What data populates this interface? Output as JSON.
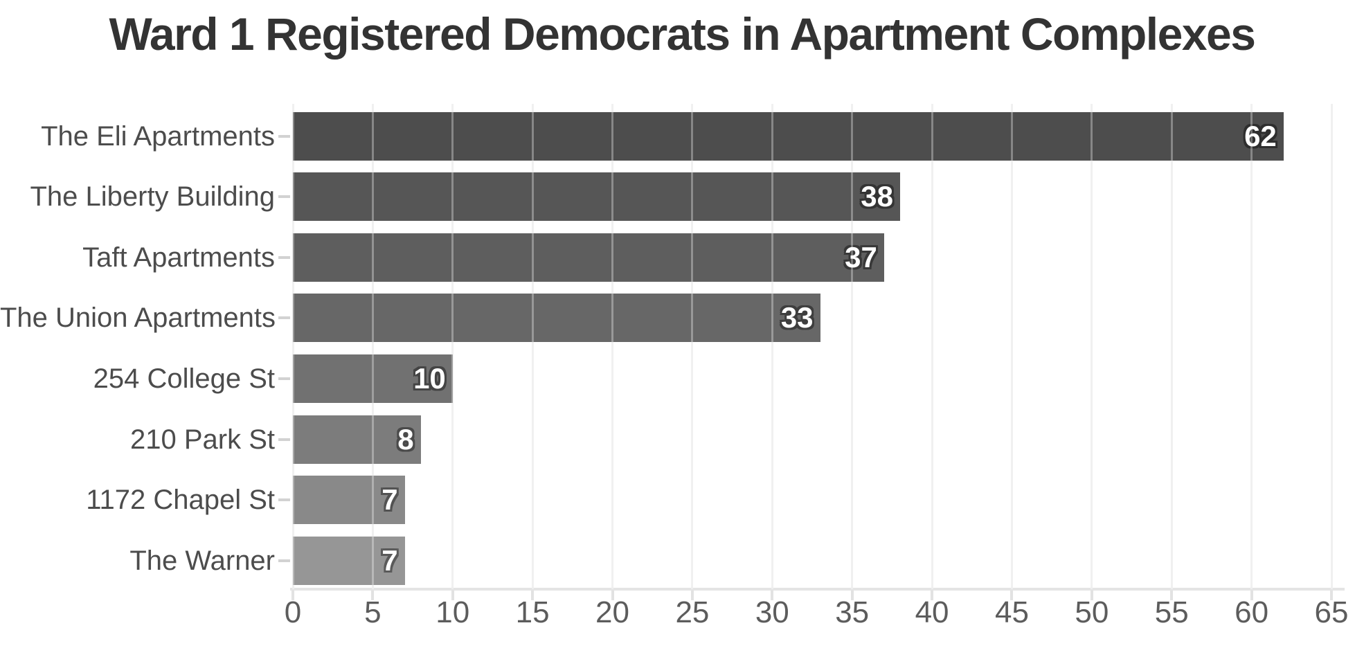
{
  "chart_data": {
    "type": "bar",
    "orientation": "horizontal",
    "title": "Ward 1 Registered Democrats in Apartment Complexes",
    "categories": [
      "The Eli Apartments",
      "The Liberty Building",
      "Taft Apartments",
      "The Union Apartments",
      "254 College St",
      "210 Park St",
      "1172 Chapel St",
      "The Warner"
    ],
    "values": [
      62,
      38,
      37,
      33,
      10,
      8,
      7,
      7
    ],
    "bar_colors": [
      "#4d4d4d",
      "#565656",
      "#5e5e5e",
      "#676767",
      "#717171",
      "#7c7c7c",
      "#898989",
      "#969696"
    ],
    "value_labels": [
      "62",
      "38",
      "37",
      "33",
      "10",
      "8",
      "7",
      "7"
    ],
    "value_label_color": "#ffffff",
    "xticks": [
      0,
      5,
      10,
      15,
      20,
      25,
      30,
      35,
      40,
      45,
      50,
      55,
      60,
      65
    ],
    "xlim": [
      0,
      65
    ],
    "xlabel": "",
    "ylabel": "",
    "legend": "none",
    "grid": "vertical-only",
    "title_color": "#333333",
    "axis_tick_color": "#5c5c5c",
    "category_label_color": "#4c4c4c",
    "gridline_color": "#e9e9e9"
  }
}
